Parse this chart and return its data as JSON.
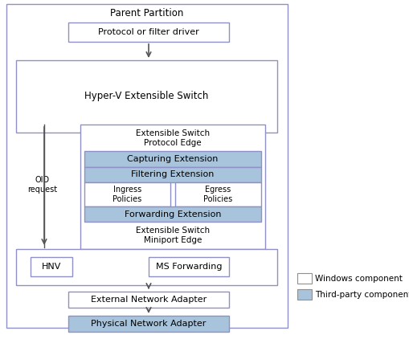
{
  "bg_color": "#ffffff",
  "border_color_purple": "#9090c8",
  "border_color_gray": "#909090",
  "blue_fill": "#a8c4dc",
  "white_fill": "#ffffff",
  "text_color": "#000000",
  "arrow_color": "#555555",
  "parent_partition_label": "Parent Partition",
  "protocol_driver_label": "Protocol or filter driver",
  "hyper_v_switch_label": "Hyper-V Extensible Switch",
  "protocol_edge_label": "Extensible Switch\nProtocol Edge",
  "capturing_label": "Capturing Extension",
  "filtering_label": "Filtering Extension",
  "ingress_label": "Ingress\nPolicies",
  "egress_label": "Egress\nPolicies",
  "forwarding_label": "Forwarding Extension",
  "miniport_edge_label": "Extensible Switch\nMiniport Edge",
  "hnv_label": "HNV",
  "ms_forwarding_label": "MS Forwarding",
  "external_adapter_label": "External Network Adapter",
  "physical_adapter_label": "Physical Network Adapter",
  "oid_request_label": "OID\nrequest",
  "legend_windows_label": "Windows component",
  "legend_third_party_label": "Third-party component"
}
